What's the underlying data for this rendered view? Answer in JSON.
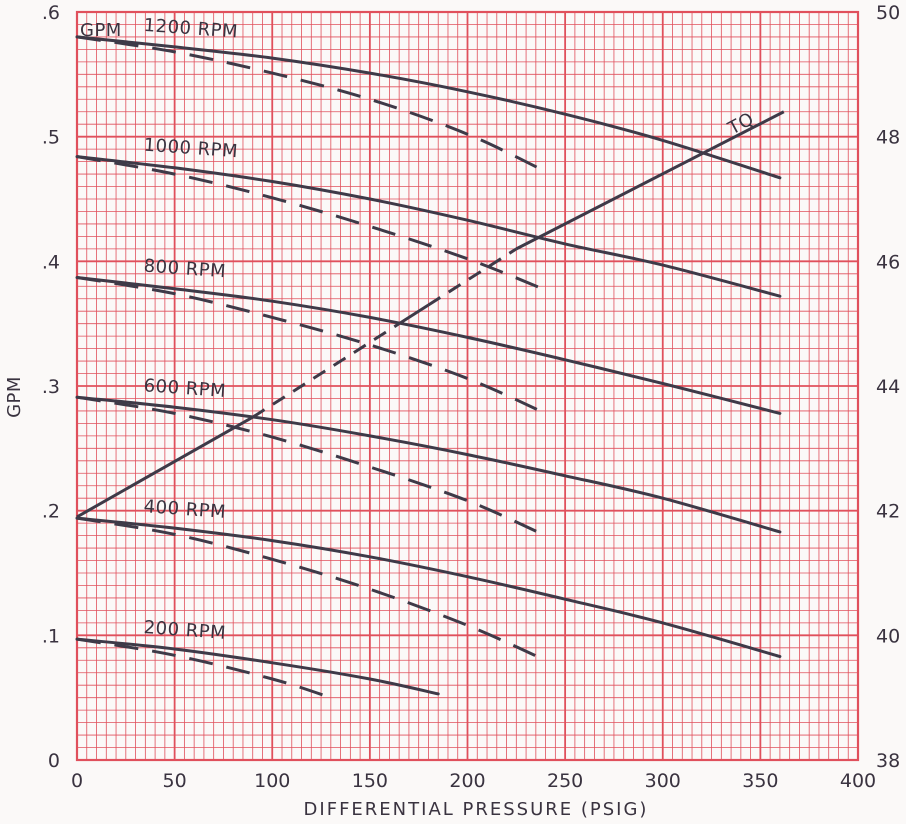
{
  "chart_data": {
    "type": "line",
    "title": "",
    "xlabel": "DIFFERENTIAL PRESSURE (PSIG)",
    "ylabel": "GPM",
    "xlim": [
      0,
      400
    ],
    "ylim": [
      0,
      0.6
    ],
    "y2lim": [
      38,
      50
    ],
    "grid": true,
    "colors": {
      "grid": "#e0505c",
      "ink": "#3e3a48",
      "paper": "#fbf9f8"
    },
    "x_ticks": [
      "0",
      "50",
      "100",
      "150",
      "200",
      "250",
      "300",
      "350",
      "400"
    ],
    "y_ticks": [
      {
        "v": 0,
        "label": "0"
      },
      {
        "v": 0.1,
        "label": ".1"
      },
      {
        "v": 0.2,
        "label": ".2"
      },
      {
        "v": 0.3,
        "label": ".3"
      },
      {
        "v": 0.4,
        "label": ".4"
      },
      {
        "v": 0.5,
        "label": ".5"
      },
      {
        "v": 0.6,
        "label": ".6"
      }
    ],
    "y2_ticks": [
      "38",
      "40",
      "42",
      "44",
      "46",
      "48",
      "50"
    ],
    "annotations": {
      "gpm_corner": "GPM",
      "torque": "TQ"
    },
    "series": [
      {
        "name": "1200 RPM",
        "x": [
          0,
          50,
          100,
          150,
          200,
          250,
          300,
          360
        ],
        "y": [
          0.58,
          0.572,
          0.563,
          0.551,
          0.536,
          0.518,
          0.497,
          0.467
        ]
      },
      {
        "name": "1000 RPM",
        "x": [
          0,
          50,
          100,
          150,
          200,
          250,
          300,
          360
        ],
        "y": [
          0.484,
          0.475,
          0.464,
          0.45,
          0.433,
          0.414,
          0.397,
          0.372
        ]
      },
      {
        "name": "800 RPM",
        "x": [
          0,
          50,
          100,
          150,
          200,
          250,
          300,
          360
        ],
        "y": [
          0.387,
          0.378,
          0.368,
          0.355,
          0.339,
          0.321,
          0.302,
          0.278
        ]
      },
      {
        "name": "600 RPM",
        "x": [
          0,
          50,
          100,
          150,
          200,
          250,
          300,
          360
        ],
        "y": [
          0.291,
          0.283,
          0.273,
          0.26,
          0.245,
          0.228,
          0.21,
          0.183
        ]
      },
      {
        "name": "400 RPM",
        "x": [
          0,
          50,
          100,
          150,
          200,
          250,
          300,
          360
        ],
        "y": [
          0.194,
          0.186,
          0.176,
          0.163,
          0.147,
          0.129,
          0.11,
          0.083
        ]
      },
      {
        "name": "200 RPM",
        "x": [
          0,
          50,
          100,
          150,
          185
        ],
        "y": [
          0.097,
          0.089,
          0.078,
          0.065,
          0.053
        ]
      }
    ],
    "dashed_series": [
      {
        "x": [
          0,
          50,
          100,
          150,
          200,
          240
        ],
        "y": [
          0.58,
          0.568,
          0.551,
          0.53,
          0.502,
          0.472
        ]
      },
      {
        "x": [
          0,
          50,
          100,
          150,
          200,
          240
        ],
        "y": [
          0.484,
          0.47,
          0.451,
          0.428,
          0.402,
          0.377
        ]
      },
      {
        "x": [
          0,
          50,
          100,
          150,
          200,
          240
        ],
        "y": [
          0.387,
          0.374,
          0.355,
          0.333,
          0.306,
          0.278
        ]
      },
      {
        "x": [
          0,
          50,
          100,
          150,
          200,
          240
        ],
        "y": [
          0.291,
          0.278,
          0.259,
          0.235,
          0.208,
          0.18
        ]
      },
      {
        "x": [
          0,
          50,
          100,
          150,
          200,
          240
        ],
        "y": [
          0.194,
          0.181,
          0.161,
          0.137,
          0.108,
          0.08
        ]
      },
      {
        "x": [
          0,
          50,
          100,
          130
        ],
        "y": [
          0.097,
          0.084,
          0.065,
          0.05
        ]
      }
    ],
    "torque_series": {
      "x_axis": "secondary",
      "segments": [
        {
          "style": "solid",
          "x": [
            0,
            90
          ],
          "y": [
            41.9,
            43.5
          ]
        },
        {
          "style": "dashed",
          "x": [
            90,
            165
          ],
          "y": [
            43.5,
            45.0
          ]
        },
        {
          "style": "solid",
          "x": [
            165,
            180
          ],
          "y": [
            45.0,
            45.3
          ]
        },
        {
          "style": "dashed",
          "x": [
            180,
            225
          ],
          "y": [
            45.3,
            46.2
          ]
        },
        {
          "style": "solid",
          "x": [
            225,
            362
          ],
          "y": [
            46.2,
            48.4
          ]
        }
      ]
    }
  }
}
